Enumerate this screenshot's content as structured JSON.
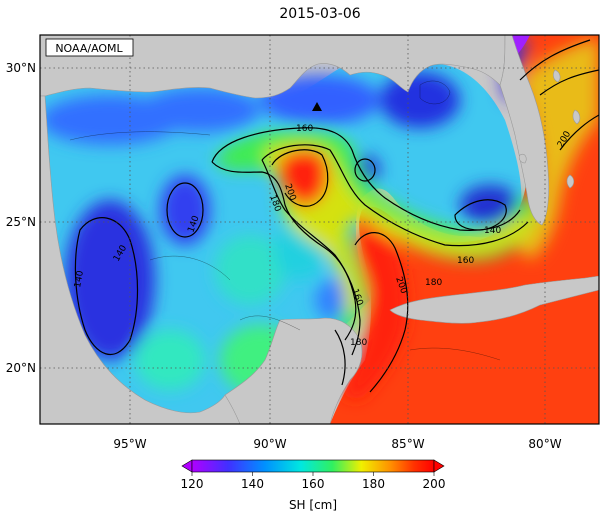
{
  "title": "2015-03-06",
  "credit": "NOAA/AOML",
  "lat_ticks": [
    "30°N",
    "25°N",
    "20°N"
  ],
  "lon_ticks": [
    "95°W",
    "90°W",
    "85°W",
    "80°W"
  ],
  "colorbar": {
    "label": "SH [cm]",
    "ticks": [
      "120",
      "140",
      "160",
      "180",
      "200"
    ],
    "range": [
      120,
      200
    ],
    "colors": [
      "#b000ff",
      "#4030ff",
      "#0090ff",
      "#00e8e0",
      "#30f060",
      "#f0f000",
      "#ff9000",
      "#ff2000",
      "#ff0000"
    ]
  },
  "contour_labels": [
    "160",
    "200",
    "180",
    "140",
    "140",
    "160",
    "180",
    "140",
    "140",
    "200",
    "160",
    "180",
    "200"
  ],
  "marker": "triangle-up",
  "colors": {
    "land": "#c8c8c8",
    "frame": "#000000",
    "grid": "#555555"
  }
}
